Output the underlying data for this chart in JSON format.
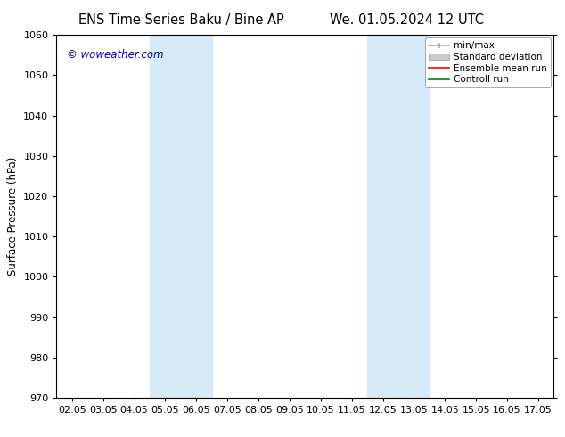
{
  "title_left": "ENS Time Series Baku / Bine AP",
  "title_right": "We. 01.05.2024 12 UTC",
  "ylabel": "Surface Pressure (hPa)",
  "ylim": [
    970,
    1060
  ],
  "yticks": [
    970,
    980,
    990,
    1000,
    1010,
    1020,
    1030,
    1040,
    1050,
    1060
  ],
  "xtick_labels": [
    "02.05",
    "03.05",
    "04.05",
    "05.05",
    "06.05",
    "07.05",
    "08.05",
    "09.05",
    "10.05",
    "11.05",
    "12.05",
    "13.05",
    "14.05",
    "15.05",
    "16.05",
    "17.05"
  ],
  "xtick_positions": [
    0,
    1,
    2,
    3,
    4,
    5,
    6,
    7,
    8,
    9,
    10,
    11,
    12,
    13,
    14,
    15
  ],
  "xlim": [
    -0.5,
    15.5
  ],
  "shaded_bands": [
    {
      "xmin": 2.5,
      "xmax": 4.5,
      "color": "#d6eaf8"
    },
    {
      "xmin": 9.5,
      "xmax": 11.5,
      "color": "#d6eaf8"
    }
  ],
  "watermark": "© woweather.com",
  "watermark_color": "#0000bb",
  "legend_items": [
    {
      "label": "min/max",
      "color": "#aaaaaa",
      "linewidth": 1.2,
      "linestyle": "-"
    },
    {
      "label": "Standard deviation",
      "color": "#cccccc",
      "linewidth": 7,
      "linestyle": "-"
    },
    {
      "label": "Ensemble mean run",
      "color": "#ff0000",
      "linewidth": 1.2,
      "linestyle": "-"
    },
    {
      "label": "Controll run",
      "color": "#008800",
      "linewidth": 1.2,
      "linestyle": "-"
    }
  ],
  "bg_color": "#ffffff",
  "plot_bg_color": "#ffffff",
  "font_size_title": 10.5,
  "font_size_axis": 8.5,
  "font_size_tick": 8,
  "font_size_legend": 7.5,
  "font_size_watermark": 8.5
}
